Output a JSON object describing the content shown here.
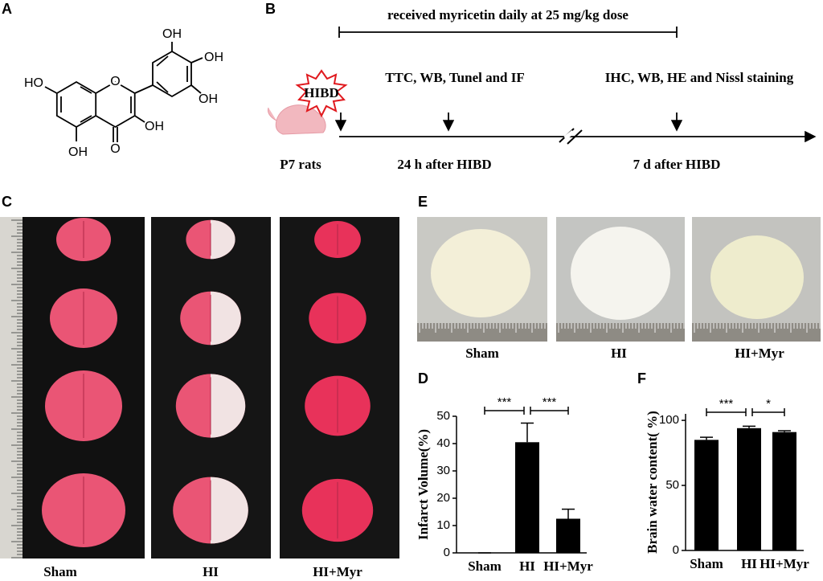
{
  "panel_labels": [
    "A",
    "B",
    "C",
    "D",
    "E",
    "F"
  ],
  "structure": {
    "labels": [
      "OH",
      "OH",
      "OH",
      "HO",
      "OH",
      "OH",
      "O",
      "O"
    ]
  },
  "timeline": {
    "dose_text": "received myricetin daily at 25 mg/kg dose",
    "injury": "HIBD",
    "early_assays": "TTC, WB, Tunel and IF",
    "late_assays": "IHC, WB, HE and Nissl staining",
    "subject": "P7 rats",
    "early_time": "24 h after HIBD",
    "late_time": "7 d after HIBD"
  },
  "photos_c": {
    "groups": [
      "Sham",
      "HI",
      "HI+Myr"
    ]
  },
  "photos_e": {
    "groups": [
      "Sham",
      "HI",
      "HI+Myr"
    ]
  },
  "chart_data": [
    {
      "type": "bar",
      "y_label": "Infarct Volume(%)",
      "categories": [
        "Sham",
        "HI",
        "HI+Myr"
      ],
      "values": [
        0,
        40.5,
        12.5
      ],
      "errors": [
        0,
        7,
        3.5
      ],
      "color": "#000000",
      "ylim": [
        0,
        50
      ],
      "yticks": [
        0,
        10,
        20,
        30,
        40,
        50
      ],
      "annotations": [
        "***",
        "***"
      ]
    },
    {
      "type": "bar",
      "y_label": "Brain water content( %)",
      "categories": [
        "Sham",
        "HI",
        "HI+Myr"
      ],
      "values": [
        85,
        94,
        91
      ],
      "errors": [
        2,
        1.5,
        1
      ],
      "color": "#000000",
      "ylim": [
        0,
        105
      ],
      "yticks": [
        0,
        50,
        100
      ],
      "annotations": [
        "***",
        "*"
      ]
    }
  ]
}
